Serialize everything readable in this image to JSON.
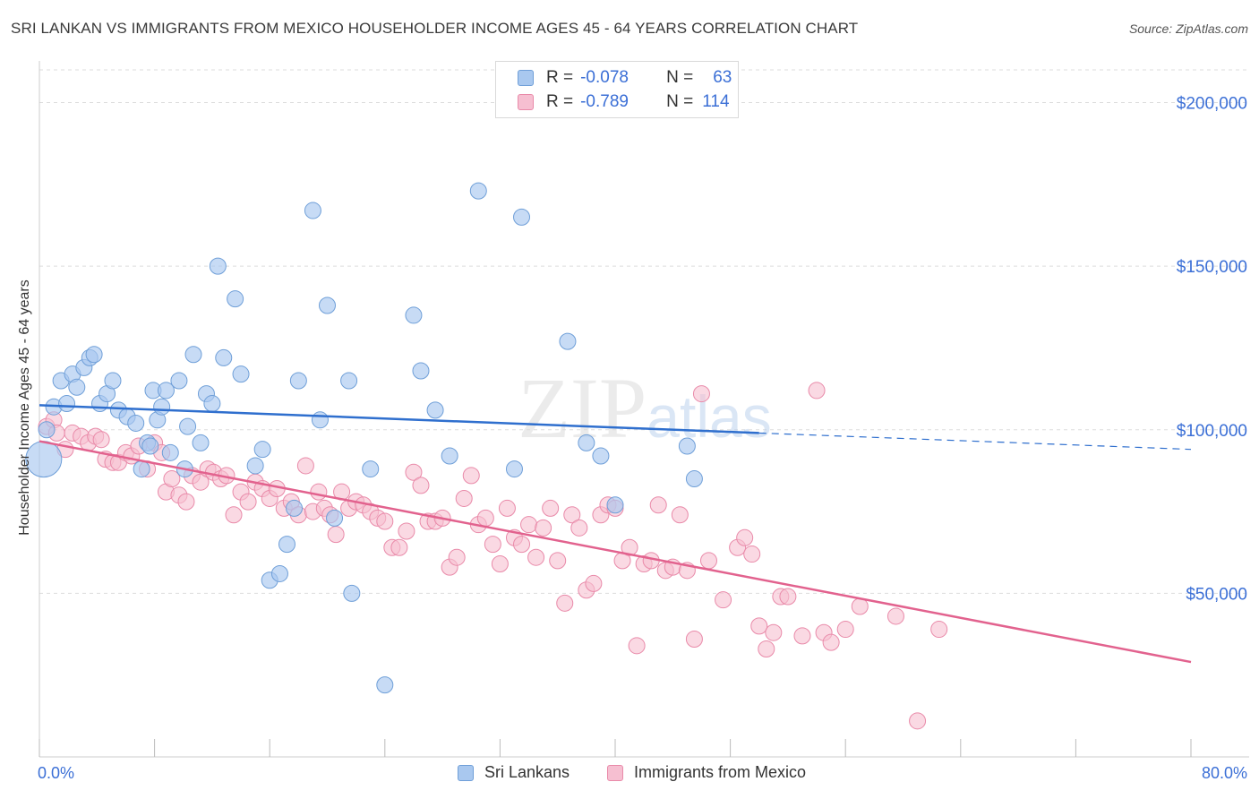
{
  "title": "SRI LANKAN VS IMMIGRANTS FROM MEXICO HOUSEHOLDER INCOME AGES 45 - 64 YEARS CORRELATION CHART",
  "source": "Source: ZipAtlas.com",
  "watermark": "ZIPatlas",
  "legend_top": [
    {
      "r_label": "R =",
      "r_value": "-0.078",
      "n_label": "N =",
      "n_value": "63"
    },
    {
      "r_label": "R =",
      "r_value": "-0.789",
      "n_label": "N =",
      "n_value": "114"
    }
  ],
  "colors": {
    "blue_fill": "#a9c8ef",
    "blue_stroke": "#6f9fd8",
    "blue_line": "#2f6fce",
    "pink_fill": "#f6bfd1",
    "pink_stroke": "#e98aa9",
    "pink_line": "#e2628e",
    "axis_text": "#3b6fd6",
    "grid": "#dddddd"
  },
  "chart_data": {
    "type": "scatter",
    "title": "SRI LANKAN VS IMMIGRANTS FROM MEXICO HOUSEHOLDER INCOME AGES 45 - 64 YEARS CORRELATION CHART",
    "xlabel": "",
    "ylabel": "Householder Income Ages 45 - 64 years",
    "xlim": [
      0,
      80
    ],
    "ylim": [
      0,
      210000
    ],
    "x_tick_labels": [
      "0.0%",
      "80.0%"
    ],
    "y_ticks": [
      50000,
      100000,
      150000,
      200000
    ],
    "y_tick_labels": [
      "$50,000",
      "$100,000",
      "$150,000",
      "$200,000"
    ],
    "grid": true,
    "legend_position": "top-center",
    "series": [
      {
        "name": "Sri Lankans",
        "color": "#a9c8ef",
        "trend": {
          "x": [
            0,
            50
          ],
          "y": [
            107500,
            99000
          ],
          "dashed_extension_to": [
            80,
            94000
          ]
        },
        "points": [
          [
            0.3,
            91000
          ],
          [
            0.5,
            100000
          ],
          [
            1.0,
            107000
          ],
          [
            1.5,
            115000
          ],
          [
            1.9,
            108000
          ],
          [
            2.3,
            117000
          ],
          [
            2.6,
            113000
          ],
          [
            3.1,
            119000
          ],
          [
            3.5,
            122000
          ],
          [
            3.8,
            123000
          ],
          [
            4.2,
            108000
          ],
          [
            4.7,
            111000
          ],
          [
            5.1,
            115000
          ],
          [
            5.5,
            106000
          ],
          [
            6.1,
            104000
          ],
          [
            6.7,
            102000
          ],
          [
            7.1,
            88000
          ],
          [
            7.5,
            96000
          ],
          [
            7.7,
            95000
          ],
          [
            7.9,
            112000
          ],
          [
            8.2,
            103000
          ],
          [
            8.5,
            107000
          ],
          [
            8.8,
            112000
          ],
          [
            9.1,
            93000
          ],
          [
            9.7,
            115000
          ],
          [
            10.1,
            88000
          ],
          [
            10.3,
            101000
          ],
          [
            10.7,
            123000
          ],
          [
            11.2,
            96000
          ],
          [
            11.6,
            111000
          ],
          [
            12.0,
            108000
          ],
          [
            12.4,
            150000
          ],
          [
            12.8,
            122000
          ],
          [
            13.6,
            140000
          ],
          [
            14.0,
            117000
          ],
          [
            15.0,
            89000
          ],
          [
            15.5,
            94000
          ],
          [
            16.0,
            54000
          ],
          [
            16.7,
            56000
          ],
          [
            17.2,
            65000
          ],
          [
            17.7,
            76000
          ],
          [
            18.0,
            115000
          ],
          [
            19.0,
            167000
          ],
          [
            19.5,
            103000
          ],
          [
            20.0,
            138000
          ],
          [
            20.5,
            73000
          ],
          [
            21.5,
            115000
          ],
          [
            21.7,
            50000
          ],
          [
            23.0,
            88000
          ],
          [
            24.0,
            22000
          ],
          [
            26.0,
            135000
          ],
          [
            26.5,
            118000
          ],
          [
            27.5,
            106000
          ],
          [
            28.5,
            92000
          ],
          [
            30.5,
            173000
          ],
          [
            33.0,
            88000
          ],
          [
            33.5,
            165000
          ],
          [
            36.7,
            127000
          ],
          [
            38.0,
            96000
          ],
          [
            39.0,
            92000
          ],
          [
            40.0,
            77000
          ],
          [
            45.0,
            95000
          ],
          [
            45.5,
            85000
          ]
        ],
        "sizes_note": "first point large"
      },
      {
        "name": "Immigrants from Mexico",
        "color": "#f6bfd1",
        "trend": {
          "x": [
            0,
            80
          ],
          "y": [
            96500,
            29000
          ]
        },
        "points": [
          [
            0.5,
            101000
          ],
          [
            1.0,
            103000
          ],
          [
            1.2,
            99000
          ],
          [
            1.8,
            94000
          ],
          [
            2.3,
            99000
          ],
          [
            2.9,
            98000
          ],
          [
            3.4,
            96000
          ],
          [
            3.9,
            98000
          ],
          [
            4.3,
            97000
          ],
          [
            4.6,
            91000
          ],
          [
            5.1,
            90000
          ],
          [
            5.5,
            90000
          ],
          [
            6.0,
            93000
          ],
          [
            6.4,
            92000
          ],
          [
            6.9,
            95000
          ],
          [
            7.5,
            88000
          ],
          [
            8.0,
            96000
          ],
          [
            8.5,
            93000
          ],
          [
            8.8,
            81000
          ],
          [
            9.2,
            85000
          ],
          [
            9.7,
            80000
          ],
          [
            10.2,
            78000
          ],
          [
            10.6,
            86000
          ],
          [
            11.2,
            84000
          ],
          [
            11.7,
            88000
          ],
          [
            12.1,
            87000
          ],
          [
            12.6,
            85000
          ],
          [
            13.0,
            86000
          ],
          [
            13.5,
            74000
          ],
          [
            14.0,
            81000
          ],
          [
            14.5,
            78000
          ],
          [
            15.0,
            84000
          ],
          [
            15.5,
            82000
          ],
          [
            16.0,
            79000
          ],
          [
            16.5,
            82000
          ],
          [
            17.0,
            76000
          ],
          [
            17.5,
            78000
          ],
          [
            18.0,
            74000
          ],
          [
            18.5,
            89000
          ],
          [
            19.0,
            75000
          ],
          [
            19.4,
            81000
          ],
          [
            19.8,
            76000
          ],
          [
            20.2,
            74000
          ],
          [
            20.6,
            68000
          ],
          [
            21.0,
            81000
          ],
          [
            21.5,
            76000
          ],
          [
            22.0,
            78000
          ],
          [
            22.5,
            77000
          ],
          [
            23.0,
            75000
          ],
          [
            23.5,
            73000
          ],
          [
            24.0,
            72000
          ],
          [
            24.5,
            64000
          ],
          [
            25.0,
            64000
          ],
          [
            25.5,
            69000
          ],
          [
            26.0,
            87000
          ],
          [
            26.5,
            83000
          ],
          [
            27.0,
            72000
          ],
          [
            27.5,
            72000
          ],
          [
            28.0,
            73000
          ],
          [
            28.5,
            58000
          ],
          [
            29.0,
            61000
          ],
          [
            29.5,
            79000
          ],
          [
            30.0,
            86000
          ],
          [
            30.5,
            71000
          ],
          [
            31.0,
            73000
          ],
          [
            31.5,
            65000
          ],
          [
            32.0,
            59000
          ],
          [
            32.5,
            76000
          ],
          [
            33.0,
            67000
          ],
          [
            33.5,
            65000
          ],
          [
            34.0,
            71000
          ],
          [
            34.5,
            61000
          ],
          [
            35.0,
            70000
          ],
          [
            35.5,
            76000
          ],
          [
            36.0,
            60000
          ],
          [
            36.5,
            47000
          ],
          [
            37.0,
            74000
          ],
          [
            37.5,
            70000
          ],
          [
            38.0,
            51000
          ],
          [
            38.5,
            53000
          ],
          [
            39.0,
            74000
          ],
          [
            39.5,
            77000
          ],
          [
            40.0,
            76000
          ],
          [
            40.5,
            60000
          ],
          [
            41.0,
            64000
          ],
          [
            41.5,
            34000
          ],
          [
            42.0,
            59000
          ],
          [
            42.5,
            60000
          ],
          [
            43.0,
            77000
          ],
          [
            43.5,
            57000
          ],
          [
            44.0,
            58000
          ],
          [
            44.5,
            74000
          ],
          [
            45.0,
            57000
          ],
          [
            45.5,
            36000
          ],
          [
            46.0,
            111000
          ],
          [
            46.5,
            60000
          ],
          [
            47.5,
            48000
          ],
          [
            48.5,
            64000
          ],
          [
            49.0,
            67000
          ],
          [
            49.5,
            62000
          ],
          [
            50.0,
            40000
          ],
          [
            50.5,
            33000
          ],
          [
            51.0,
            38000
          ],
          [
            51.5,
            49000
          ],
          [
            52.0,
            49000
          ],
          [
            53.0,
            37000
          ],
          [
            54.0,
            112000
          ],
          [
            54.5,
            38000
          ],
          [
            56.0,
            39000
          ],
          [
            59.5,
            43000
          ],
          [
            61.0,
            11000
          ],
          [
            62.5,
            39000
          ],
          [
            55.0,
            35000
          ],
          [
            57.0,
            46000
          ]
        ]
      }
    ]
  },
  "bottom_legend": [
    "Sri Lankans",
    "Immigrants from Mexico"
  ]
}
